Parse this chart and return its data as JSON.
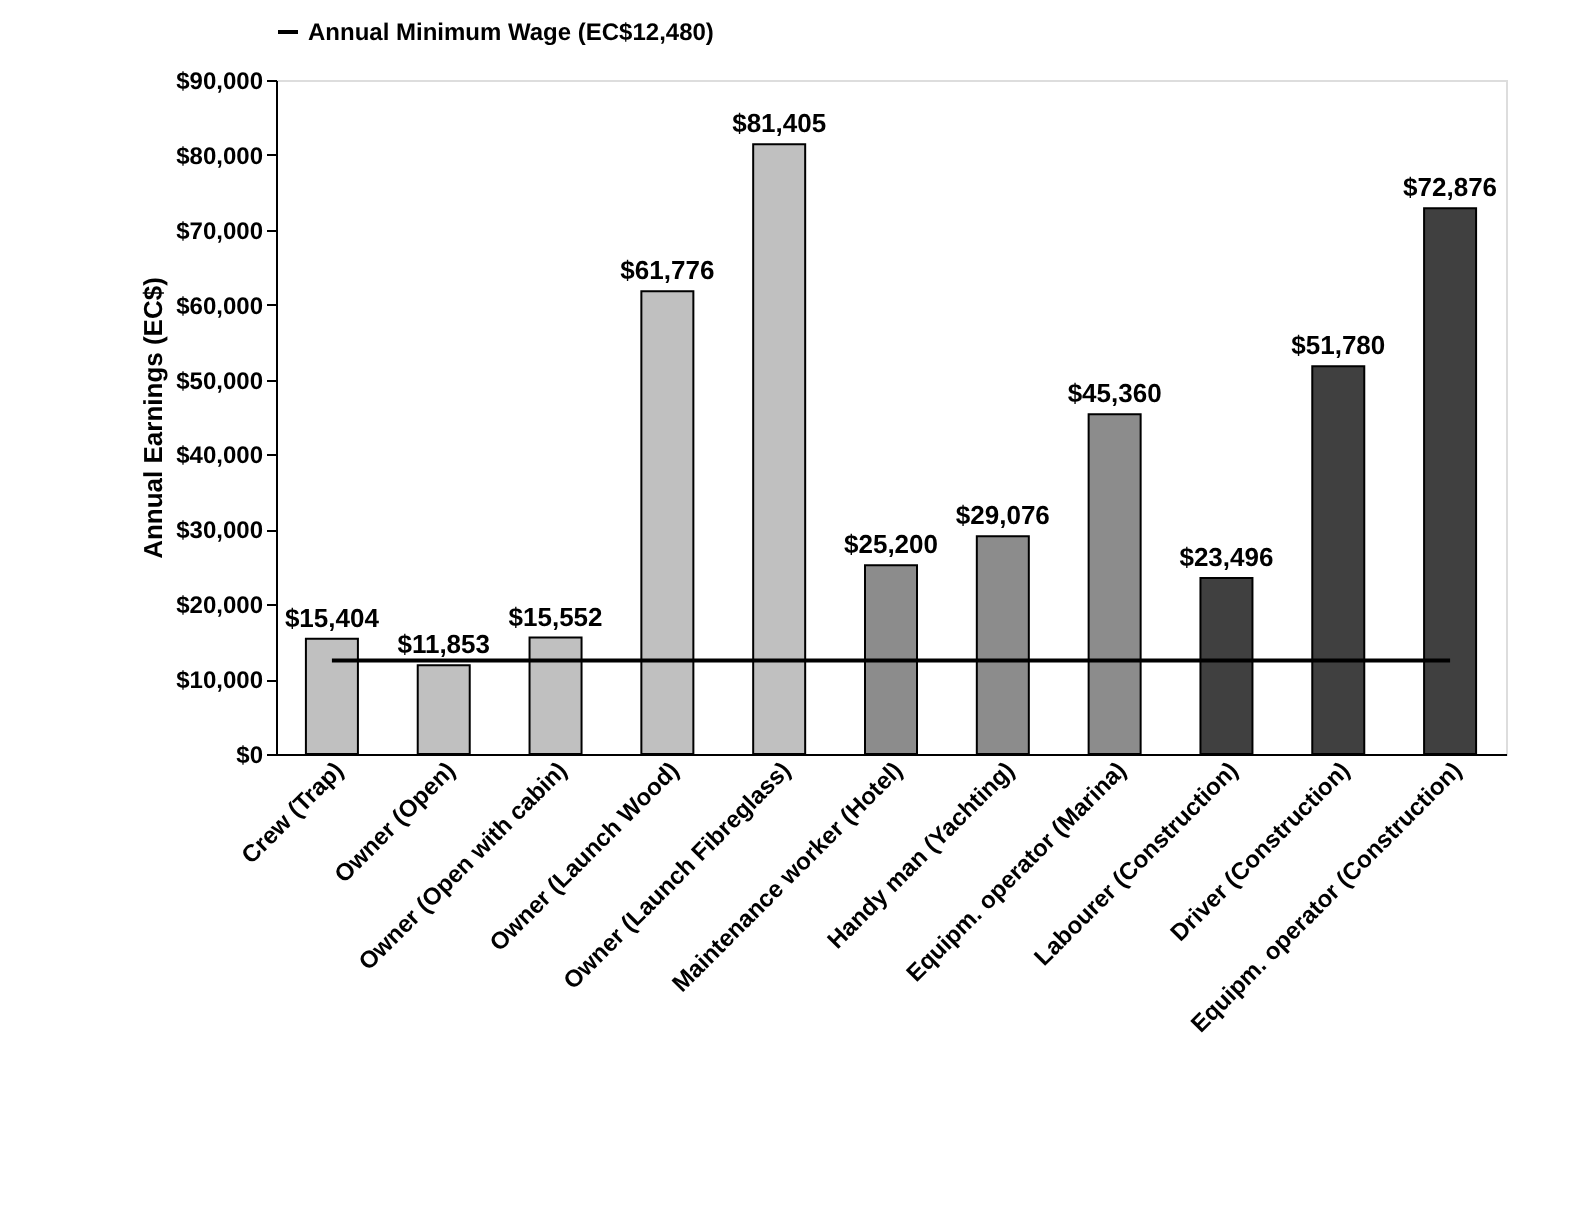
{
  "chart_data": {
    "type": "bar",
    "ylabel": "Annual  Earnings (EC$)",
    "categories": [
      "Crew (Trap)",
      "Owner (Open)",
      "Owner (Open with cabin)",
      "Owner (Launch Wood)",
      "Owner (Launch Fibreglass)",
      "Maintenance worker (Hotel)",
      "Handy man  (Yachting)",
      "Equipm. operator (Marina)",
      "Labourer (Construction)",
      "Driver (Construction)",
      "Equipm. operator (Construction)"
    ],
    "values": [
      15404,
      11853,
      15552,
      61776,
      81405,
      25200,
      29076,
      45360,
      23496,
      51780,
      72876
    ],
    "colors": [
      "#c0c0c0",
      "#c0c0c0",
      "#c0c0c0",
      "#c0c0c0",
      "#c0c0c0",
      "#8c8c8c",
      "#8c8c8c",
      "#8c8c8c",
      "#404040",
      "#404040",
      "#404040"
    ],
    "value_labels": [
      "$15,404",
      "$11,853",
      "$15,552",
      "$61,776",
      "$81,405",
      "$25,200",
      "$29,076",
      "$45,360",
      "$23,496",
      "$51,780",
      "$72,876"
    ],
    "ylim": [
      0,
      90000
    ],
    "yticks": [
      {
        "value": 0,
        "label": "$0"
      },
      {
        "value": 10000,
        "label": "$10,000"
      },
      {
        "value": 20000,
        "label": "$20,000"
      },
      {
        "value": 30000,
        "label": "$30,000"
      },
      {
        "value": 40000,
        "label": "$40,000"
      },
      {
        "value": 50000,
        "label": "$50,000"
      },
      {
        "value": 60000,
        "label": "$60,000"
      },
      {
        "value": 70000,
        "label": "$70,000"
      },
      {
        "value": 80000,
        "label": "$80,000"
      },
      {
        "value": 90000,
        "label": "$90,000"
      }
    ],
    "ref_lines": [
      {
        "axis": "y",
        "value": 12480,
        "label": "Annual Minimum Wage (EC$12,480)",
        "color": "#000000",
        "line_style": "solid"
      }
    ],
    "grid": false,
    "legend": "top"
  }
}
